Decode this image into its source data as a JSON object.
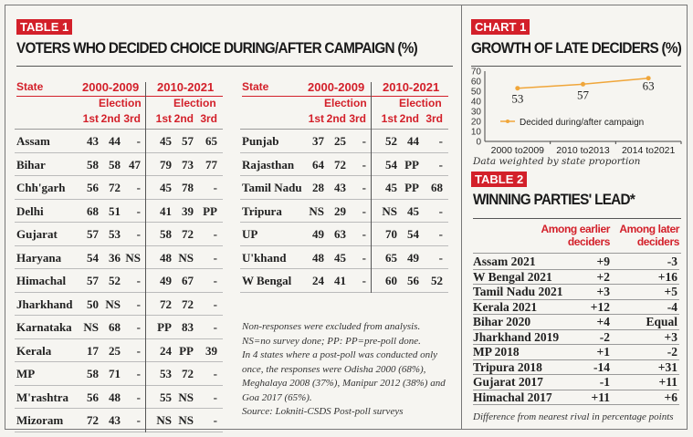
{
  "table1": {
    "tag": "TABLE 1",
    "title": "VOTERS WHO DECIDED CHOICE DURING/AFTER CAMPAIGN (%)",
    "header": {
      "state": "State",
      "period1": "2000-2009",
      "period2": "2010-2021",
      "election": "Election",
      "cols": [
        "1st",
        "2nd",
        "3rd"
      ]
    },
    "left_rows": [
      [
        "Assam",
        "43",
        "44",
        "-",
        "45",
        "57",
        "65"
      ],
      [
        "Bihar",
        "58",
        "58",
        "47",
        "79",
        "73",
        "77"
      ],
      [
        "Chh'garh",
        "56",
        "72",
        "-",
        "45",
        "78",
        "-"
      ],
      [
        "Delhi",
        "68",
        "51",
        "-",
        "41",
        "39",
        "PP"
      ],
      [
        "Gujarat",
        "57",
        "53",
        "-",
        "58",
        "72",
        "-"
      ],
      [
        "Haryana",
        "54",
        "36",
        "NS",
        "48",
        "NS",
        "-"
      ],
      [
        "Himachal",
        "57",
        "52",
        "-",
        "49",
        "67",
        "-"
      ],
      [
        "Jharkhand",
        "50",
        "NS",
        "-",
        "72",
        "72",
        "-"
      ],
      [
        "Karnataka",
        "NS",
        "68",
        "-",
        "PP",
        "83",
        "-"
      ],
      [
        "Kerala",
        "17",
        "25",
        "-",
        "24",
        "PP",
        "39"
      ],
      [
        "MP",
        "58",
        "71",
        "-",
        "53",
        "72",
        "-"
      ],
      [
        "M'rashtra",
        "56",
        "48",
        "-",
        "55",
        "NS",
        "-"
      ],
      [
        "Mizoram",
        "72",
        "43",
        "-",
        "NS",
        "NS",
        "-"
      ]
    ],
    "right_rows": [
      [
        "Punjab",
        "37",
        "25",
        "-",
        "52",
        "44",
        "-"
      ],
      [
        "Rajasthan",
        "64",
        "72",
        "-",
        "54",
        "PP",
        "-"
      ],
      [
        "Tamil Nadu",
        "28",
        "43",
        "-",
        "45",
        "PP",
        "68"
      ],
      [
        "Tripura",
        "NS",
        "29",
        "-",
        "NS",
        "45",
        "-"
      ],
      [
        "UP",
        "49",
        "63",
        "-",
        "70",
        "54",
        "-"
      ],
      [
        "U'khand",
        "48",
        "45",
        "-",
        "65",
        "49",
        "-"
      ],
      [
        "W Bengal",
        "24",
        "41",
        "-",
        "60",
        "56",
        "52"
      ]
    ],
    "notes": [
      "Non-responses were excluded from analysis.",
      "NS=no survey done; PP: PP=pre-poll done.",
      "In 4 states where a post-poll was conducted only once, the responses were Odisha 2000 (68%), Meghalaya 2008 (37%), Manipur 2012 (38%) and Goa 2017 (65%).",
      "Source: Lokniti-CSDS Post-poll surveys"
    ]
  },
  "chart_data": {
    "type": "line",
    "tag": "CHART 1",
    "title": "GROWTH OF LATE DECIDERS (%)",
    "categories": [
      "2000 to2009",
      "2010 to2013",
      "2014 to2021"
    ],
    "series": [
      {
        "name": "Decided during/after campaign",
        "values": [
          53,
          57,
          63
        ],
        "color": "#f0a63a"
      }
    ],
    "ylim": [
      0,
      70
    ],
    "yticks": [
      "0",
      "10",
      "20",
      "30",
      "40",
      "50",
      "60",
      "70"
    ],
    "legend": "center",
    "grid": false,
    "footnote": "Data weighted by state proportion"
  },
  "table2": {
    "tag": "TABLE 2",
    "title": "WINNING PARTIES' LEAD*",
    "col1": [
      "Among earlier",
      "deciders"
    ],
    "col2": [
      "Among later",
      "deciders"
    ],
    "rows": [
      [
        "Assam 2021",
        "+9",
        "-3"
      ],
      [
        "W Bengal 2021",
        "+2",
        "+16"
      ],
      [
        "Tamil Nadu 2021",
        "+3",
        "+5"
      ],
      [
        "Kerala 2021",
        "+12",
        "-4"
      ],
      [
        "Bihar 2020",
        "+4",
        "Equal"
      ],
      [
        "Jharkhand 2019",
        "-2",
        "+3"
      ],
      [
        "MP 2018",
        "+1",
        "-2"
      ],
      [
        "Tripura 2018",
        "-14",
        "+31"
      ],
      [
        "Gujarat 2017",
        "-1",
        "+11"
      ],
      [
        "Himachal 2017",
        "+11",
        "+6"
      ]
    ],
    "footnote": "Difference from nearest rival in percentage points"
  },
  "colors": {
    "accent": "#d3202a",
    "line": "#f0a63a"
  }
}
